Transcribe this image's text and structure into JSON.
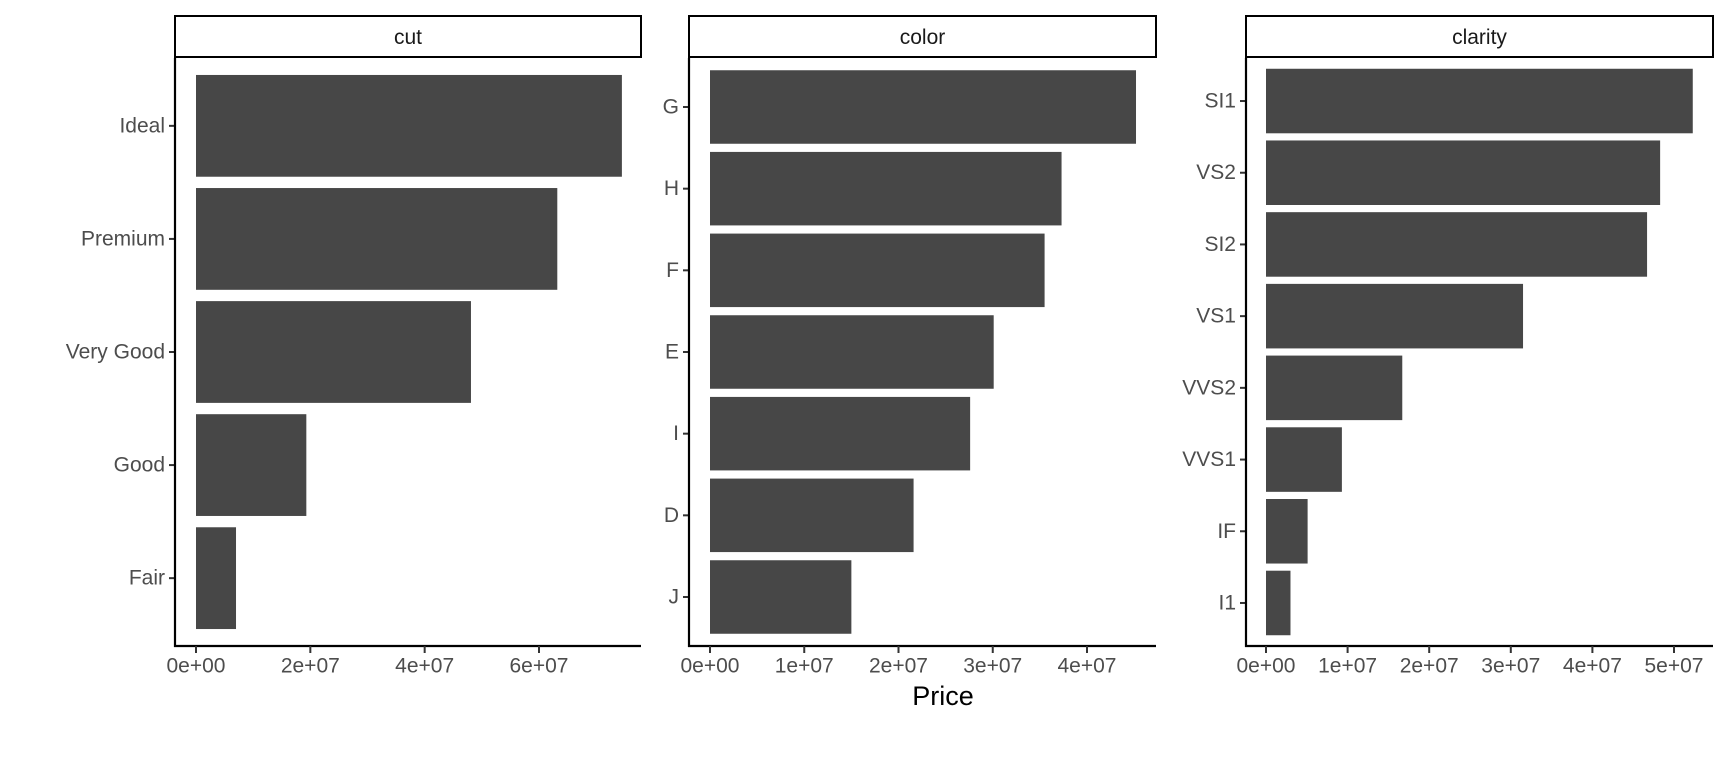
{
  "chart_data": {
    "type": "bar",
    "orientation": "horizontal",
    "xlabel": "Price",
    "grid": false,
    "facets": [
      {
        "strip_label": "cut",
        "categories": [
          "Ideal",
          "Premium",
          "Very Good",
          "Good",
          "Fair"
        ],
        "values": [
          74500000,
          63200000,
          48100000,
          19300000,
          7000000
        ],
        "xlim": [
          0,
          75000000
        ],
        "ticks": [
          0,
          20000000,
          40000000,
          60000000
        ],
        "tick_labels": [
          "0e+00",
          "2e+07",
          "4e+07",
          "6e+07"
        ]
      },
      {
        "strip_label": "color",
        "categories": [
          "G",
          "H",
          "F",
          "E",
          "I",
          "D",
          "J"
        ],
        "values": [
          45200000,
          37300000,
          35500000,
          30100000,
          27600000,
          21600000,
          15000000
        ],
        "xlim": [
          0,
          45000000
        ],
        "ticks": [
          0,
          10000000,
          20000000,
          30000000,
          40000000
        ],
        "tick_labels": [
          "0e+00",
          "1e+07",
          "2e+07",
          "3e+07",
          "4e+07"
        ]
      },
      {
        "strip_label": "clarity",
        "categories": [
          "SI1",
          "VS2",
          "SI2",
          "VS1",
          "VVS2",
          "VVS1",
          "IF",
          "I1"
        ],
        "values": [
          52300000,
          48300000,
          46700000,
          31500000,
          16700000,
          9300000,
          5100000,
          3000000
        ],
        "xlim": [
          0,
          52000000
        ],
        "ticks": [
          0,
          10000000,
          20000000,
          30000000,
          40000000,
          50000000
        ],
        "tick_labels": [
          "0e+00",
          "1e+07",
          "2e+07",
          "3e+07",
          "4e+07",
          "5e+07"
        ]
      }
    ]
  }
}
